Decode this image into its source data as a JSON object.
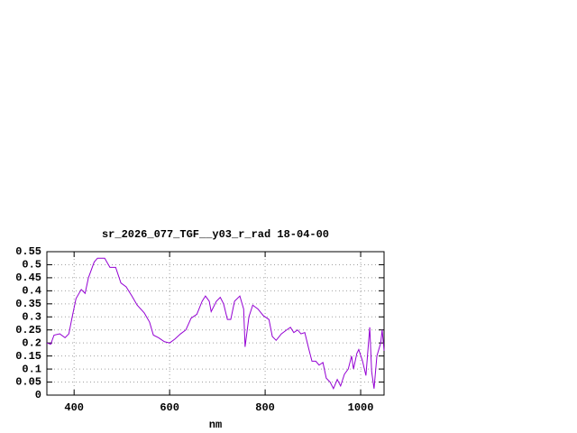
{
  "chart_data": {
    "type": "line",
    "title": "sr_2026_077_TGF__y03_r_rad 18-04-00",
    "x_label": "nm",
    "x": [
      343,
      351,
      358,
      370,
      381,
      389,
      396,
      404,
      415,
      423,
      430,
      442,
      449,
      464,
      475,
      487,
      498,
      509,
      521,
      532,
      547,
      558,
      566,
      577,
      589,
      600,
      611,
      623,
      634,
      645,
      657,
      668,
      675,
      683,
      687,
      698,
      706,
      713,
      721,
      728,
      736,
      747,
      755,
      758,
      766,
      774,
      785,
      796,
      808,
      815,
      823,
      834,
      845,
      853,
      860,
      868,
      875,
      883,
      891,
      898,
      906,
      913,
      921,
      928,
      936,
      943,
      951,
      958,
      966,
      974,
      981,
      985,
      992,
      996,
      1004,
      1011,
      1019,
      1023,
      1028,
      1034,
      1042,
      1045,
      1049
    ],
    "values": [
      0.2,
      0.195,
      0.23,
      0.235,
      0.22,
      0.235,
      0.3,
      0.37,
      0.405,
      0.39,
      0.45,
      0.51,
      0.525,
      0.525,
      0.49,
      0.49,
      0.43,
      0.415,
      0.38,
      0.345,
      0.315,
      0.28,
      0.23,
      0.22,
      0.205,
      0.2,
      0.215,
      0.235,
      0.25,
      0.295,
      0.31,
      0.36,
      0.38,
      0.36,
      0.32,
      0.36,
      0.375,
      0.35,
      0.29,
      0.29,
      0.36,
      0.38,
      0.33,
      0.185,
      0.3,
      0.345,
      0.33,
      0.305,
      0.29,
      0.225,
      0.21,
      0.235,
      0.25,
      0.26,
      0.24,
      0.25,
      0.235,
      0.24,
      0.18,
      0.13,
      0.13,
      0.115,
      0.125,
      0.065,
      0.05,
      0.025,
      0.06,
      0.035,
      0.08,
      0.1,
      0.15,
      0.1,
      0.16,
      0.175,
      0.13,
      0.075,
      0.26,
      0.09,
      0.025,
      0.15,
      0.2,
      0.25,
      0.17
    ],
    "color": "#9400d3",
    "xlim": [
      343,
      1049
    ],
    "xticks": [
      400,
      600,
      800,
      1000
    ],
    "ylim": [
      0,
      0.55
    ],
    "yticks": [
      0,
      0.05,
      0.1,
      0.15,
      0.2,
      0.25,
      0.3,
      0.35,
      0.4,
      0.45,
      0.5,
      0.55
    ],
    "grid": true
  }
}
